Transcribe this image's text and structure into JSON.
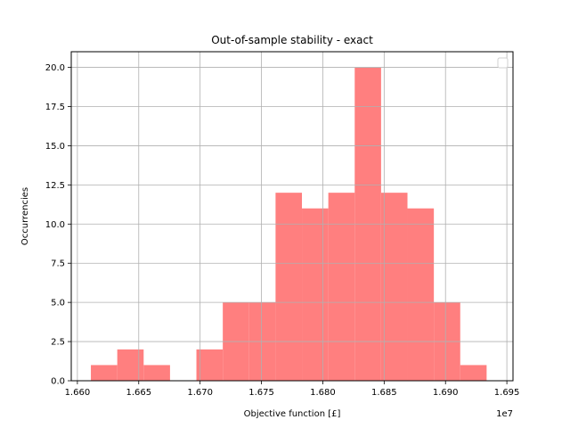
{
  "chart_data": {
    "type": "bar",
    "title": "Out-of-sample stability - exact",
    "xlabel": "Objective function [£]",
    "ylabel": "Occurrencies",
    "x_offset_label": "1e7",
    "xlim": [
      1.6595,
      1.6955
    ],
    "ylim": [
      0,
      21
    ],
    "x_ticks": [
      1.66,
      1.665,
      1.67,
      1.675,
      1.68,
      1.685,
      1.69,
      1.695
    ],
    "x_tick_labels": [
      "1.660",
      "1.665",
      "1.670",
      "1.675",
      "1.680",
      "1.685",
      "1.690",
      "1.695"
    ],
    "y_ticks": [
      0,
      2.5,
      5,
      7.5,
      10,
      12.5,
      15,
      17.5,
      20
    ],
    "y_tick_labels": [
      "0.0",
      "2.5",
      "5.0",
      "7.5",
      "10.0",
      "12.5",
      "15.0",
      "17.5",
      "20.0"
    ],
    "bin_edges": [
      1.6611,
      1.66325,
      1.6654,
      1.66755,
      1.6697,
      1.67185,
      1.674,
      1.67615,
      1.6783,
      1.68045,
      1.6826,
      1.68475,
      1.6869,
      1.68905,
      1.6912,
      1.69335,
      1.6955
    ],
    "values": [
      1,
      2,
      1,
      0,
      2,
      5,
      5,
      12,
      11,
      12,
      20,
      12,
      11,
      5,
      1,
      0
    ],
    "bar_color": "#ff7f7f",
    "grid": true,
    "legend": "top-right, empty"
  }
}
